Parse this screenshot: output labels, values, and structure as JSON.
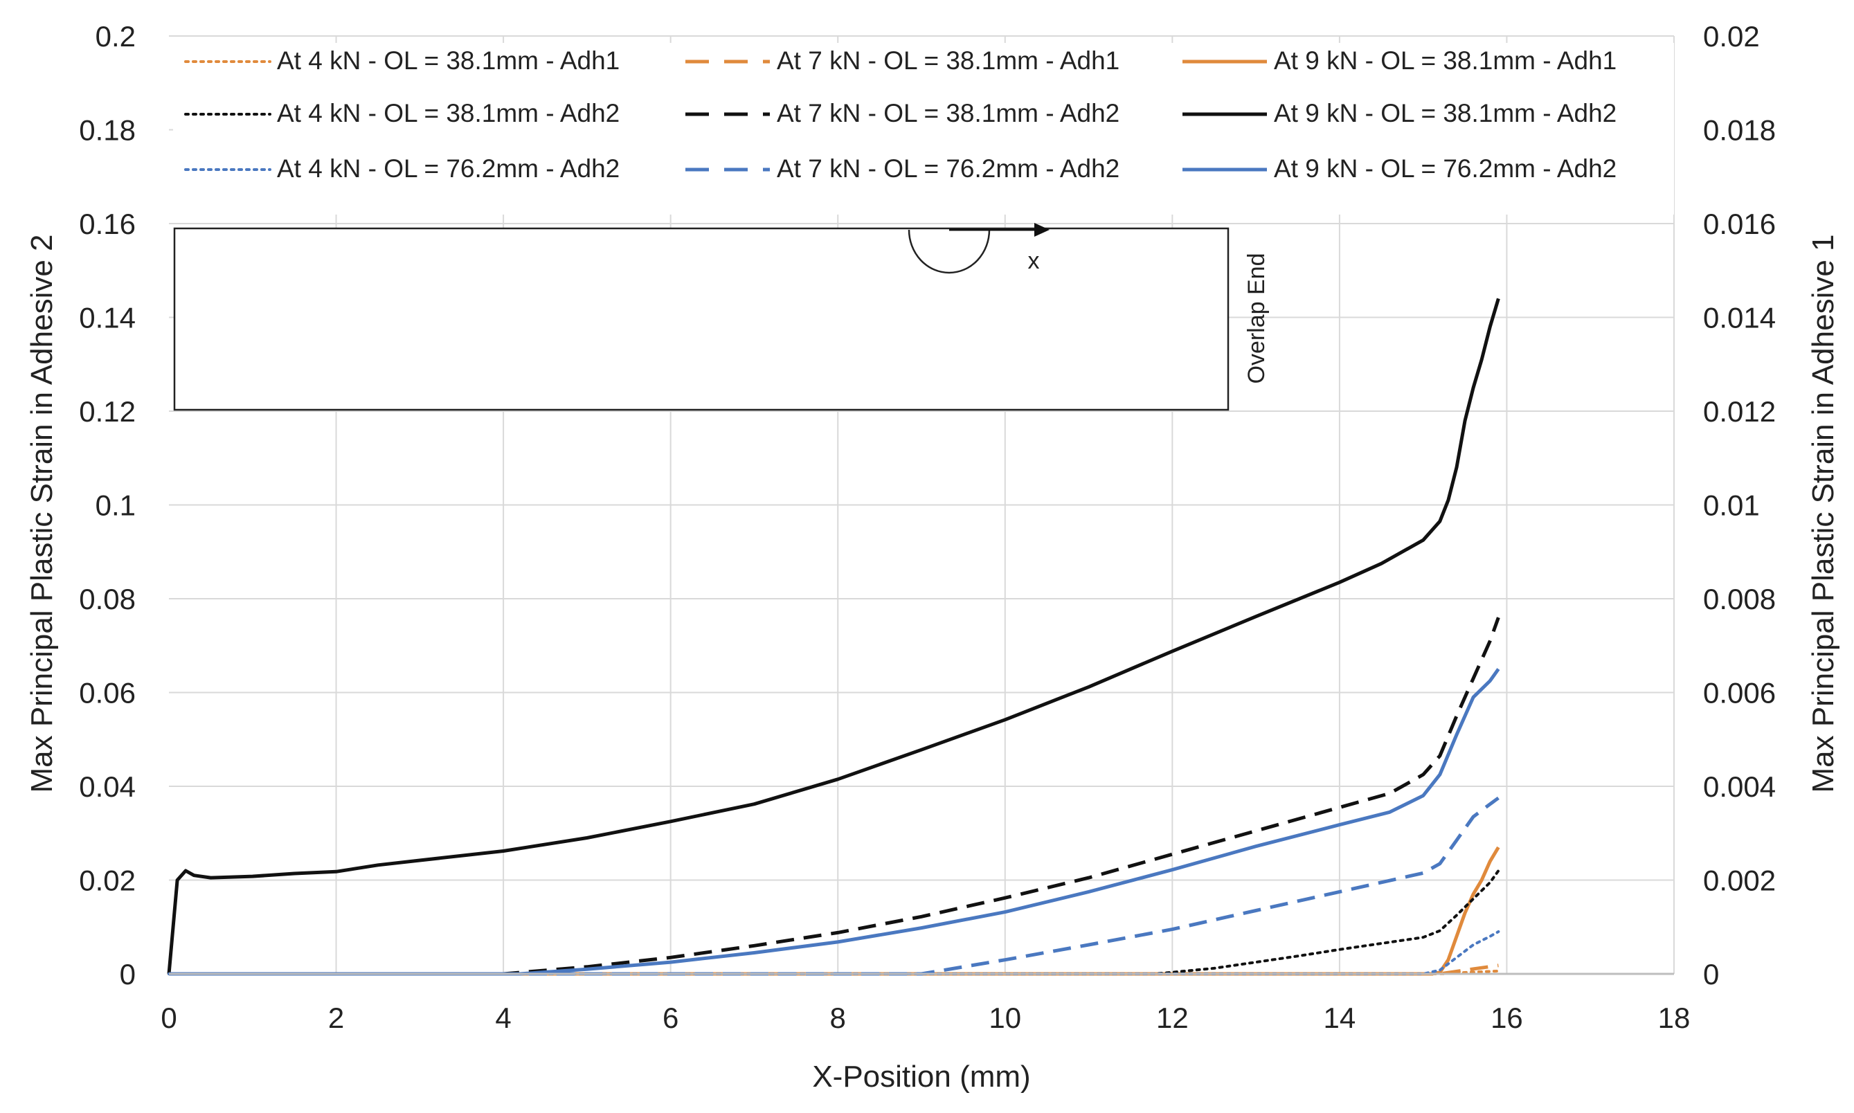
{
  "chart_data": {
    "type": "line",
    "title": "",
    "xlabel": "X-Position (mm)",
    "ylabel_left": "Max Principal Plastic Strain in Adhesive 2",
    "ylabel_right": "Max Principal Plastic Strain in Adhesive 1",
    "xlim": [
      0,
      18
    ],
    "ylim_left": [
      0,
      0.2
    ],
    "ylim_right": [
      0,
      0.02
    ],
    "x_ticks": [
      "0",
      "2",
      "4",
      "6",
      "8",
      "10",
      "12",
      "14",
      "16",
      "18"
    ],
    "y_left_ticks": [
      "0",
      "0.02",
      "0.04",
      "0.06",
      "0.08",
      "0.1",
      "0.12",
      "0.14",
      "0.16",
      "0.18",
      "0.2"
    ],
    "y_right_ticks": [
      "0",
      "0.002",
      "0.004",
      "0.006",
      "0.008",
      "0.01",
      "0.012",
      "0.014",
      "0.016",
      "0.018",
      "0.02"
    ],
    "grid": true,
    "legend_position": "top",
    "inset": {
      "axis_label": "x",
      "edge_label": "Overlap End"
    },
    "series": [
      {
        "name": "At 4 kN - OL = 38.1mm - Adh1",
        "axis": "right",
        "color": "#e08a3c",
        "style": "dotted",
        "x": [
          0,
          15.2,
          15.5,
          15.9
        ],
        "y": [
          0,
          0,
          3e-05,
          6e-05
        ]
      },
      {
        "name": "At 7 kN - OL = 38.1mm - Adh1",
        "axis": "right",
        "color": "#e08a3c",
        "style": "dashed",
        "x": [
          0,
          15.2,
          15.5,
          15.9
        ],
        "y": [
          0,
          0,
          8e-05,
          0.00018
        ]
      },
      {
        "name": "At 9 kN - OL = 38.1mm - Adh1",
        "axis": "right",
        "color": "#e08a3c",
        "style": "solid",
        "x": [
          0,
          15.1,
          15.2,
          15.3,
          15.4,
          15.5,
          15.6,
          15.7,
          15.8,
          15.9
        ],
        "y": [
          0,
          0,
          3e-05,
          0.0003,
          0.0008,
          0.0013,
          0.0017,
          0.002,
          0.0024,
          0.0027
        ]
      },
      {
        "name": "At 4 kN - OL = 38.1mm - Adh2",
        "axis": "left",
        "color": "#111111",
        "style": "dotted",
        "x": [
          0,
          11.8,
          12.5,
          13,
          13.5,
          14,
          14.5,
          15,
          15.2,
          15.4,
          15.6,
          15.8,
          15.9
        ],
        "y": [
          0,
          0,
          0.0012,
          0.0025,
          0.0038,
          0.0052,
          0.0065,
          0.0078,
          0.0092,
          0.0125,
          0.016,
          0.0195,
          0.022
        ]
      },
      {
        "name": "At 7 kN - OL = 38.1mm - Adh2",
        "axis": "left",
        "color": "#111111",
        "style": "dashed",
        "x": [
          0,
          4,
          5,
          6,
          7,
          8,
          9,
          10,
          11,
          12,
          13,
          14,
          14.6,
          15,
          15.2,
          15.4,
          15.6,
          15.8,
          15.9
        ],
        "y": [
          0,
          0,
          0.0015,
          0.0035,
          0.006,
          0.0088,
          0.0122,
          0.0162,
          0.0205,
          0.0255,
          0.0305,
          0.0355,
          0.0385,
          0.0425,
          0.0465,
          0.055,
          0.063,
          0.071,
          0.076
        ]
      },
      {
        "name": "At 9 kN - OL = 38.1mm - Adh2",
        "axis": "left",
        "color": "#111111",
        "style": "solid",
        "x": [
          0,
          0.1,
          0.2,
          0.3,
          0.5,
          1,
          1.5,
          2,
          2.5,
          3,
          4,
          5,
          6,
          7,
          8,
          9,
          10,
          11,
          12,
          13,
          14,
          14.5,
          15,
          15.2,
          15.3,
          15.4,
          15.5,
          15.6,
          15.7,
          15.8,
          15.9
        ],
        "y": [
          0,
          0.02,
          0.022,
          0.021,
          0.0205,
          0.0208,
          0.0214,
          0.0218,
          0.0232,
          0.0242,
          0.0262,
          0.029,
          0.0325,
          0.0362,
          0.0415,
          0.0478,
          0.0542,
          0.0612,
          0.0688,
          0.0762,
          0.0835,
          0.0875,
          0.0925,
          0.0965,
          0.101,
          0.108,
          0.118,
          0.125,
          0.131,
          0.138,
          0.144
        ]
      },
      {
        "name": "At 4 kN - OL = 76.2mm - Adh2",
        "axis": "left",
        "color": "#4a78c0",
        "style": "dotted",
        "x": [
          0,
          15,
          15.2,
          15.4,
          15.6,
          15.8,
          15.9
        ],
        "y": [
          0,
          0,
          0.0008,
          0.0035,
          0.0062,
          0.008,
          0.009
        ]
      },
      {
        "name": "At 7 kN - OL = 76.2mm - Adh2",
        "axis": "left",
        "color": "#4a78c0",
        "style": "dashed",
        "x": [
          0,
          9,
          10,
          11,
          12,
          13,
          14,
          15,
          15.2,
          15.4,
          15.6,
          15.8,
          15.9
        ],
        "y": [
          0,
          0,
          0.003,
          0.0062,
          0.0095,
          0.0135,
          0.0175,
          0.0215,
          0.0235,
          0.0285,
          0.0335,
          0.0362,
          0.0375
        ]
      },
      {
        "name": "At 9 kN - OL = 76.2mm - Adh2",
        "axis": "left",
        "color": "#4a78c0",
        "style": "solid",
        "x": [
          0,
          4.2,
          5,
          6,
          7,
          8,
          9,
          10,
          11,
          12,
          13,
          14,
          14.6,
          15,
          15.2,
          15.4,
          15.6,
          15.8,
          15.9
        ],
        "y": [
          0,
          0,
          0.001,
          0.0025,
          0.0045,
          0.0068,
          0.0098,
          0.0132,
          0.0175,
          0.0222,
          0.0272,
          0.0318,
          0.0345,
          0.038,
          0.0425,
          0.051,
          0.059,
          0.0625,
          0.065
        ]
      }
    ]
  }
}
